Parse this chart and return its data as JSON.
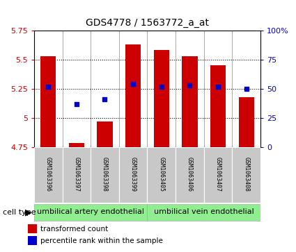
{
  "title": "GDS4778 / 1563772_a_at",
  "samples": [
    "GSM1063396",
    "GSM1063397",
    "GSM1063398",
    "GSM1063399",
    "GSM1063405",
    "GSM1063406",
    "GSM1063407",
    "GSM1063408"
  ],
  "red_values": [
    5.53,
    4.79,
    4.97,
    5.63,
    5.58,
    5.53,
    5.45,
    5.18
  ],
  "blue_values_pct": [
    52,
    37,
    41,
    54,
    52,
    53,
    52,
    50
  ],
  "ylim_left": [
    4.75,
    5.75
  ],
  "ylim_right": [
    0,
    100
  ],
  "yticks_left": [
    4.75,
    5.0,
    5.25,
    5.5,
    5.75
  ],
  "yticks_right": [
    0,
    25,
    50,
    75,
    100
  ],
  "ytick_labels_left": [
    "4.75",
    "5",
    "5.25",
    "5.5",
    "5.75"
  ],
  "ytick_labels_right": [
    "0",
    "25",
    "50",
    "75",
    "100%"
  ],
  "group1_label": "umbilical artery endothelial",
  "group2_label": "umbilical vein endothelial",
  "cell_type_label": "cell type",
  "legend1": "transformed count",
  "legend2": "percentile rank within the sample",
  "red_color": "#cc0000",
  "blue_color": "#0000cc",
  "group1_indices": [
    0,
    1,
    2,
    3
  ],
  "group2_indices": [
    4,
    5,
    6,
    7
  ],
  "plot_bg": "#ffffff",
  "label_bg": "#c8c8c8",
  "group_bg": "#90ee90",
  "grid_yticks": [
    5.0,
    5.25,
    5.5
  ],
  "bar_width": 0.55,
  "title_fontsize": 10,
  "tick_fontsize": 8,
  "sample_fontsize": 6,
  "legend_fontsize": 7.5,
  "group_fontsize": 8
}
